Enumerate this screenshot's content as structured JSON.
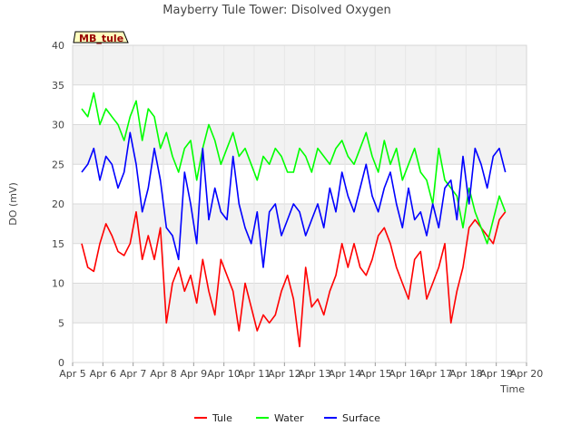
{
  "chart_data": {
    "type": "line",
    "title": "Mayberry Tule Tower: Disolved Oxygen",
    "xlabel": "Time",
    "ylabel": "DO (mV)",
    "station_tag": "MB_tule",
    "xlim": [
      5,
      20
    ],
    "ylim": [
      0,
      40
    ],
    "x_ticks": [
      5,
      6,
      7,
      8,
      9,
      10,
      11,
      12,
      13,
      14,
      15,
      16,
      17,
      18,
      19,
      20
    ],
    "x_tick_labels": [
      "Apr 5",
      "Apr 6",
      "Apr 7",
      "Apr 8",
      "Apr 9",
      "Apr 10",
      "Apr 11",
      "Apr 12",
      "Apr 13",
      "Apr 14",
      "Apr 15",
      "Apr 16",
      "Apr 17",
      "Apr 18",
      "Apr 19",
      "Apr 20"
    ],
    "y_ticks": [
      0,
      5,
      10,
      15,
      20,
      25,
      30,
      35,
      40
    ],
    "y_tick_labels": [
      "0",
      "5",
      "10",
      "15",
      "20",
      "25",
      "30",
      "35",
      "40"
    ],
    "grid": true,
    "legend_position": "bottom-center",
    "x": [
      5.3,
      5.5,
      5.7,
      5.9,
      6.1,
      6.3,
      6.5,
      6.7,
      6.9,
      7.1,
      7.3,
      7.5,
      7.7,
      7.9,
      8.1,
      8.3,
      8.5,
      8.7,
      8.9,
      9.1,
      9.3,
      9.5,
      9.7,
      9.9,
      10.1,
      10.3,
      10.5,
      10.7,
      10.9,
      11.1,
      11.3,
      11.5,
      11.7,
      11.9,
      12.1,
      12.3,
      12.5,
      12.7,
      12.9,
      13.1,
      13.3,
      13.5,
      13.7,
      13.9,
      14.1,
      14.3,
      14.5,
      14.7,
      14.9,
      15.1,
      15.3,
      15.5,
      15.7,
      15.9,
      16.1,
      16.3,
      16.5,
      16.7,
      16.9,
      17.1,
      17.3,
      17.5,
      17.7,
      17.9,
      18.1,
      18.3,
      18.5,
      18.7,
      18.9,
      19.1,
      19.3
    ],
    "series": [
      {
        "name": "Tule",
        "color": "#ff0000",
        "values": [
          15,
          12,
          11.5,
          15,
          17.5,
          16,
          14,
          13.5,
          15,
          19,
          13,
          16,
          13,
          17,
          5,
          10,
          12,
          9,
          11,
          7.5,
          13,
          9,
          6,
          13,
          11,
          9,
          4,
          10,
          7,
          4,
          6,
          5,
          6,
          9,
          11,
          8,
          2,
          12,
          7,
          8,
          6,
          9,
          11,
          15,
          12,
          15,
          12,
          11,
          13,
          16,
          17,
          15,
          12,
          10,
          8,
          13,
          14,
          8,
          10,
          12,
          15,
          5,
          9,
          12,
          17,
          18,
          17,
          16,
          15,
          18,
          19
        ]
      },
      {
        "name": "Water",
        "color": "#00ff00",
        "values": [
          32,
          31,
          34,
          30,
          32,
          31,
          30,
          28,
          31,
          33,
          28,
          32,
          31,
          27,
          29,
          26,
          24,
          27,
          28,
          23,
          27,
          30,
          28,
          25,
          27,
          29,
          26,
          27,
          25,
          23,
          26,
          25,
          27,
          26,
          24,
          24,
          27,
          26,
          24,
          27,
          26,
          25,
          27,
          28,
          26,
          25,
          27,
          29,
          26,
          24,
          28,
          25,
          27,
          23,
          25,
          27,
          24,
          23,
          20,
          27,
          23,
          22,
          21,
          17,
          22,
          19,
          17,
          15,
          18,
          21,
          19
        ]
      },
      {
        "name": "Surface",
        "color": "#0000ff",
        "values": [
          24,
          25,
          27,
          23,
          26,
          25,
          22,
          24,
          29,
          25,
          19,
          22,
          27,
          23,
          17,
          16,
          13,
          24,
          20,
          15,
          27,
          18,
          22,
          19,
          18,
          26,
          20,
          17,
          15,
          19,
          12,
          19,
          20,
          16,
          18,
          20,
          19,
          16,
          18,
          20,
          17,
          22,
          19,
          24,
          21,
          19,
          22,
          25,
          21,
          19,
          22,
          24,
          20,
          17,
          22,
          18,
          19,
          16,
          20,
          17,
          22,
          23,
          18,
          26,
          20,
          27,
          25,
          22,
          26,
          27,
          24
        ]
      }
    ]
  }
}
